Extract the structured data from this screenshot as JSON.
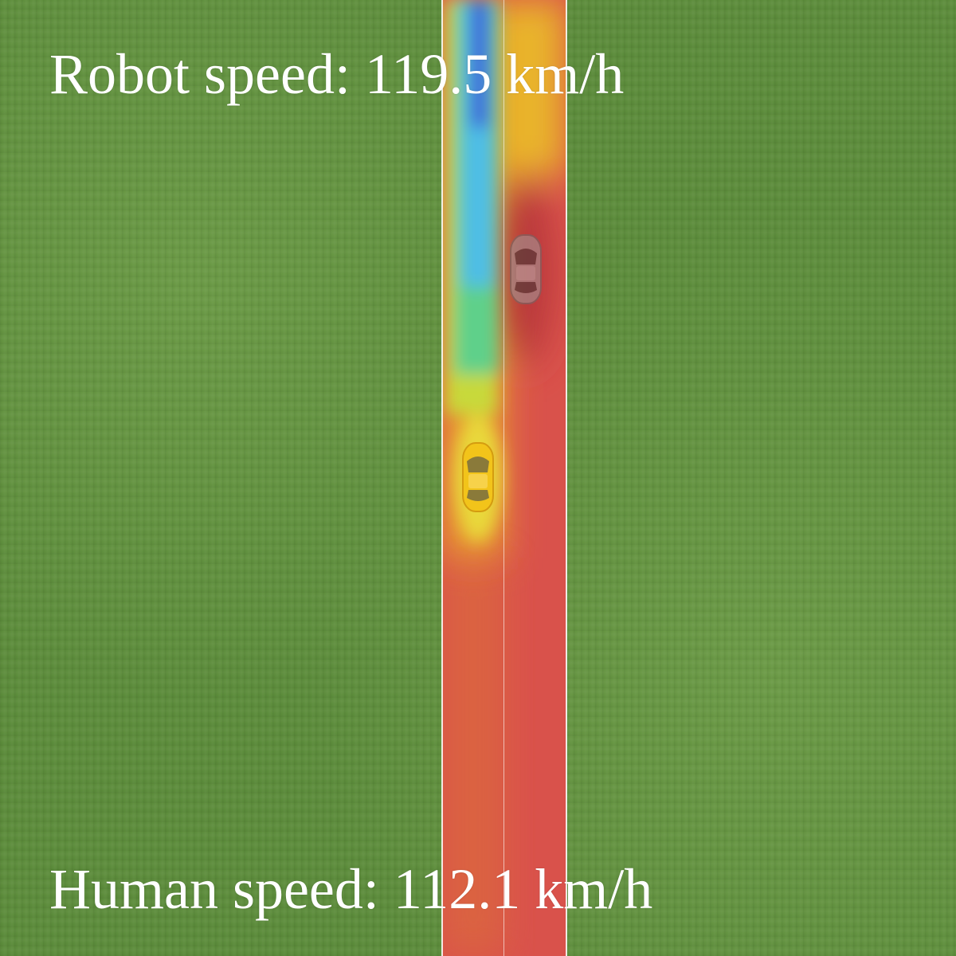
{
  "hud": {
    "robot_speed": "Robot speed: 119.5 km/h",
    "human_speed": "Human speed: 112.1 km/h"
  },
  "scene": {
    "ground": "grass",
    "road_lanes": 2,
    "robot_car_color": "#f2c41a",
    "human_car_color": "#9e9e9e"
  }
}
